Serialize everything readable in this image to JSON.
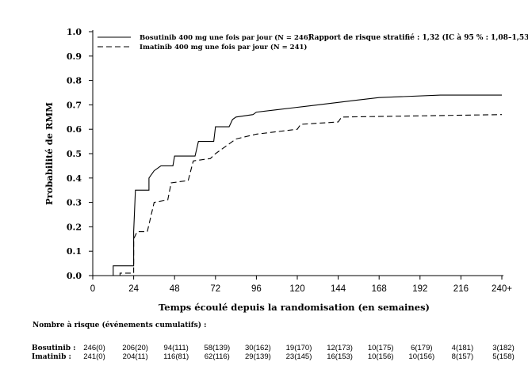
{
  "chart_data": {
    "type": "line",
    "title": "",
    "xlabel": "Temps écoulé depuis la randomisation (en semaines)",
    "ylabel": "Probabilité de RMM",
    "xlim": [
      0,
      240
    ],
    "ylim": [
      0,
      1.0
    ],
    "x_ticks": [
      "0",
      "24",
      "48",
      "72",
      "96",
      "120",
      "144",
      "168",
      "192",
      "216",
      "240+"
    ],
    "y_ticks": [
      "0.0",
      "0.1",
      "0.2",
      "0.3",
      "0.4",
      "0.5",
      "0.6",
      "0.7",
      "0.8",
      "0.9",
      "1.0"
    ],
    "grid": false,
    "legend_position": "top-left",
    "annotation": "Rapport de risque stratifié : 1,32 (IC à 95 % : 1,08–1,53)",
    "series": [
      {
        "name": "Bosutinib 400 mg une fois par jour (N = 246)",
        "style": "solid",
        "color": "#000000",
        "points": [
          [
            0,
            0
          ],
          [
            12,
            0
          ],
          [
            12,
            0.04
          ],
          [
            24,
            0.04
          ],
          [
            24,
            0.18
          ],
          [
            25,
            0.35
          ],
          [
            33,
            0.35
          ],
          [
            33,
            0.4
          ],
          [
            36,
            0.43
          ],
          [
            40,
            0.45
          ],
          [
            47,
            0.45
          ],
          [
            48,
            0.49
          ],
          [
            60,
            0.49
          ],
          [
            62,
            0.55
          ],
          [
            71,
            0.55
          ],
          [
            72,
            0.61
          ],
          [
            80,
            0.61
          ],
          [
            82,
            0.64
          ],
          [
            84,
            0.65
          ],
          [
            94,
            0.66
          ],
          [
            96,
            0.67
          ],
          [
            108,
            0.68
          ],
          [
            120,
            0.69
          ],
          [
            132,
            0.7
          ],
          [
            144,
            0.71
          ],
          [
            156,
            0.72
          ],
          [
            168,
            0.73
          ],
          [
            204,
            0.74
          ],
          [
            240,
            0.74
          ]
        ]
      },
      {
        "name": "Imatinib 400 mg une fois par jour (N = 241)",
        "style": "dashed",
        "color": "#000000",
        "points": [
          [
            0,
            0
          ],
          [
            16,
            0
          ],
          [
            16,
            0.01
          ],
          [
            24,
            0.01
          ],
          [
            24,
            0.15
          ],
          [
            26,
            0.18
          ],
          [
            32,
            0.18
          ],
          [
            36,
            0.3
          ],
          [
            44,
            0.31
          ],
          [
            46,
            0.38
          ],
          [
            56,
            0.39
          ],
          [
            59,
            0.47
          ],
          [
            69,
            0.48
          ],
          [
            72,
            0.5
          ],
          [
            78,
            0.53
          ],
          [
            84,
            0.56
          ],
          [
            96,
            0.58
          ],
          [
            108,
            0.59
          ],
          [
            120,
            0.6
          ],
          [
            122,
            0.62
          ],
          [
            144,
            0.63
          ],
          [
            146,
            0.65
          ],
          [
            240,
            0.66
          ]
        ]
      }
    ]
  },
  "risk_table": {
    "title": "Nombre à risque (événements cumulatifs) :",
    "rows": [
      {
        "label": "Bosutinib :",
        "values": [
          "246(0)",
          "206(20)",
          "94(111)",
          "58(139)",
          "30(162)",
          "19(170)",
          "12(173)",
          "10(175)",
          "6(179)",
          "4(181)",
          "3(182)"
        ]
      },
      {
        "label": "Imatinib :",
        "values": [
          "241(0)",
          "204(11)",
          "116(81)",
          "62(116)",
          "29(139)",
          "23(145)",
          "16(153)",
          "10(156)",
          "10(156)",
          "8(157)",
          "5(158)"
        ]
      }
    ]
  }
}
